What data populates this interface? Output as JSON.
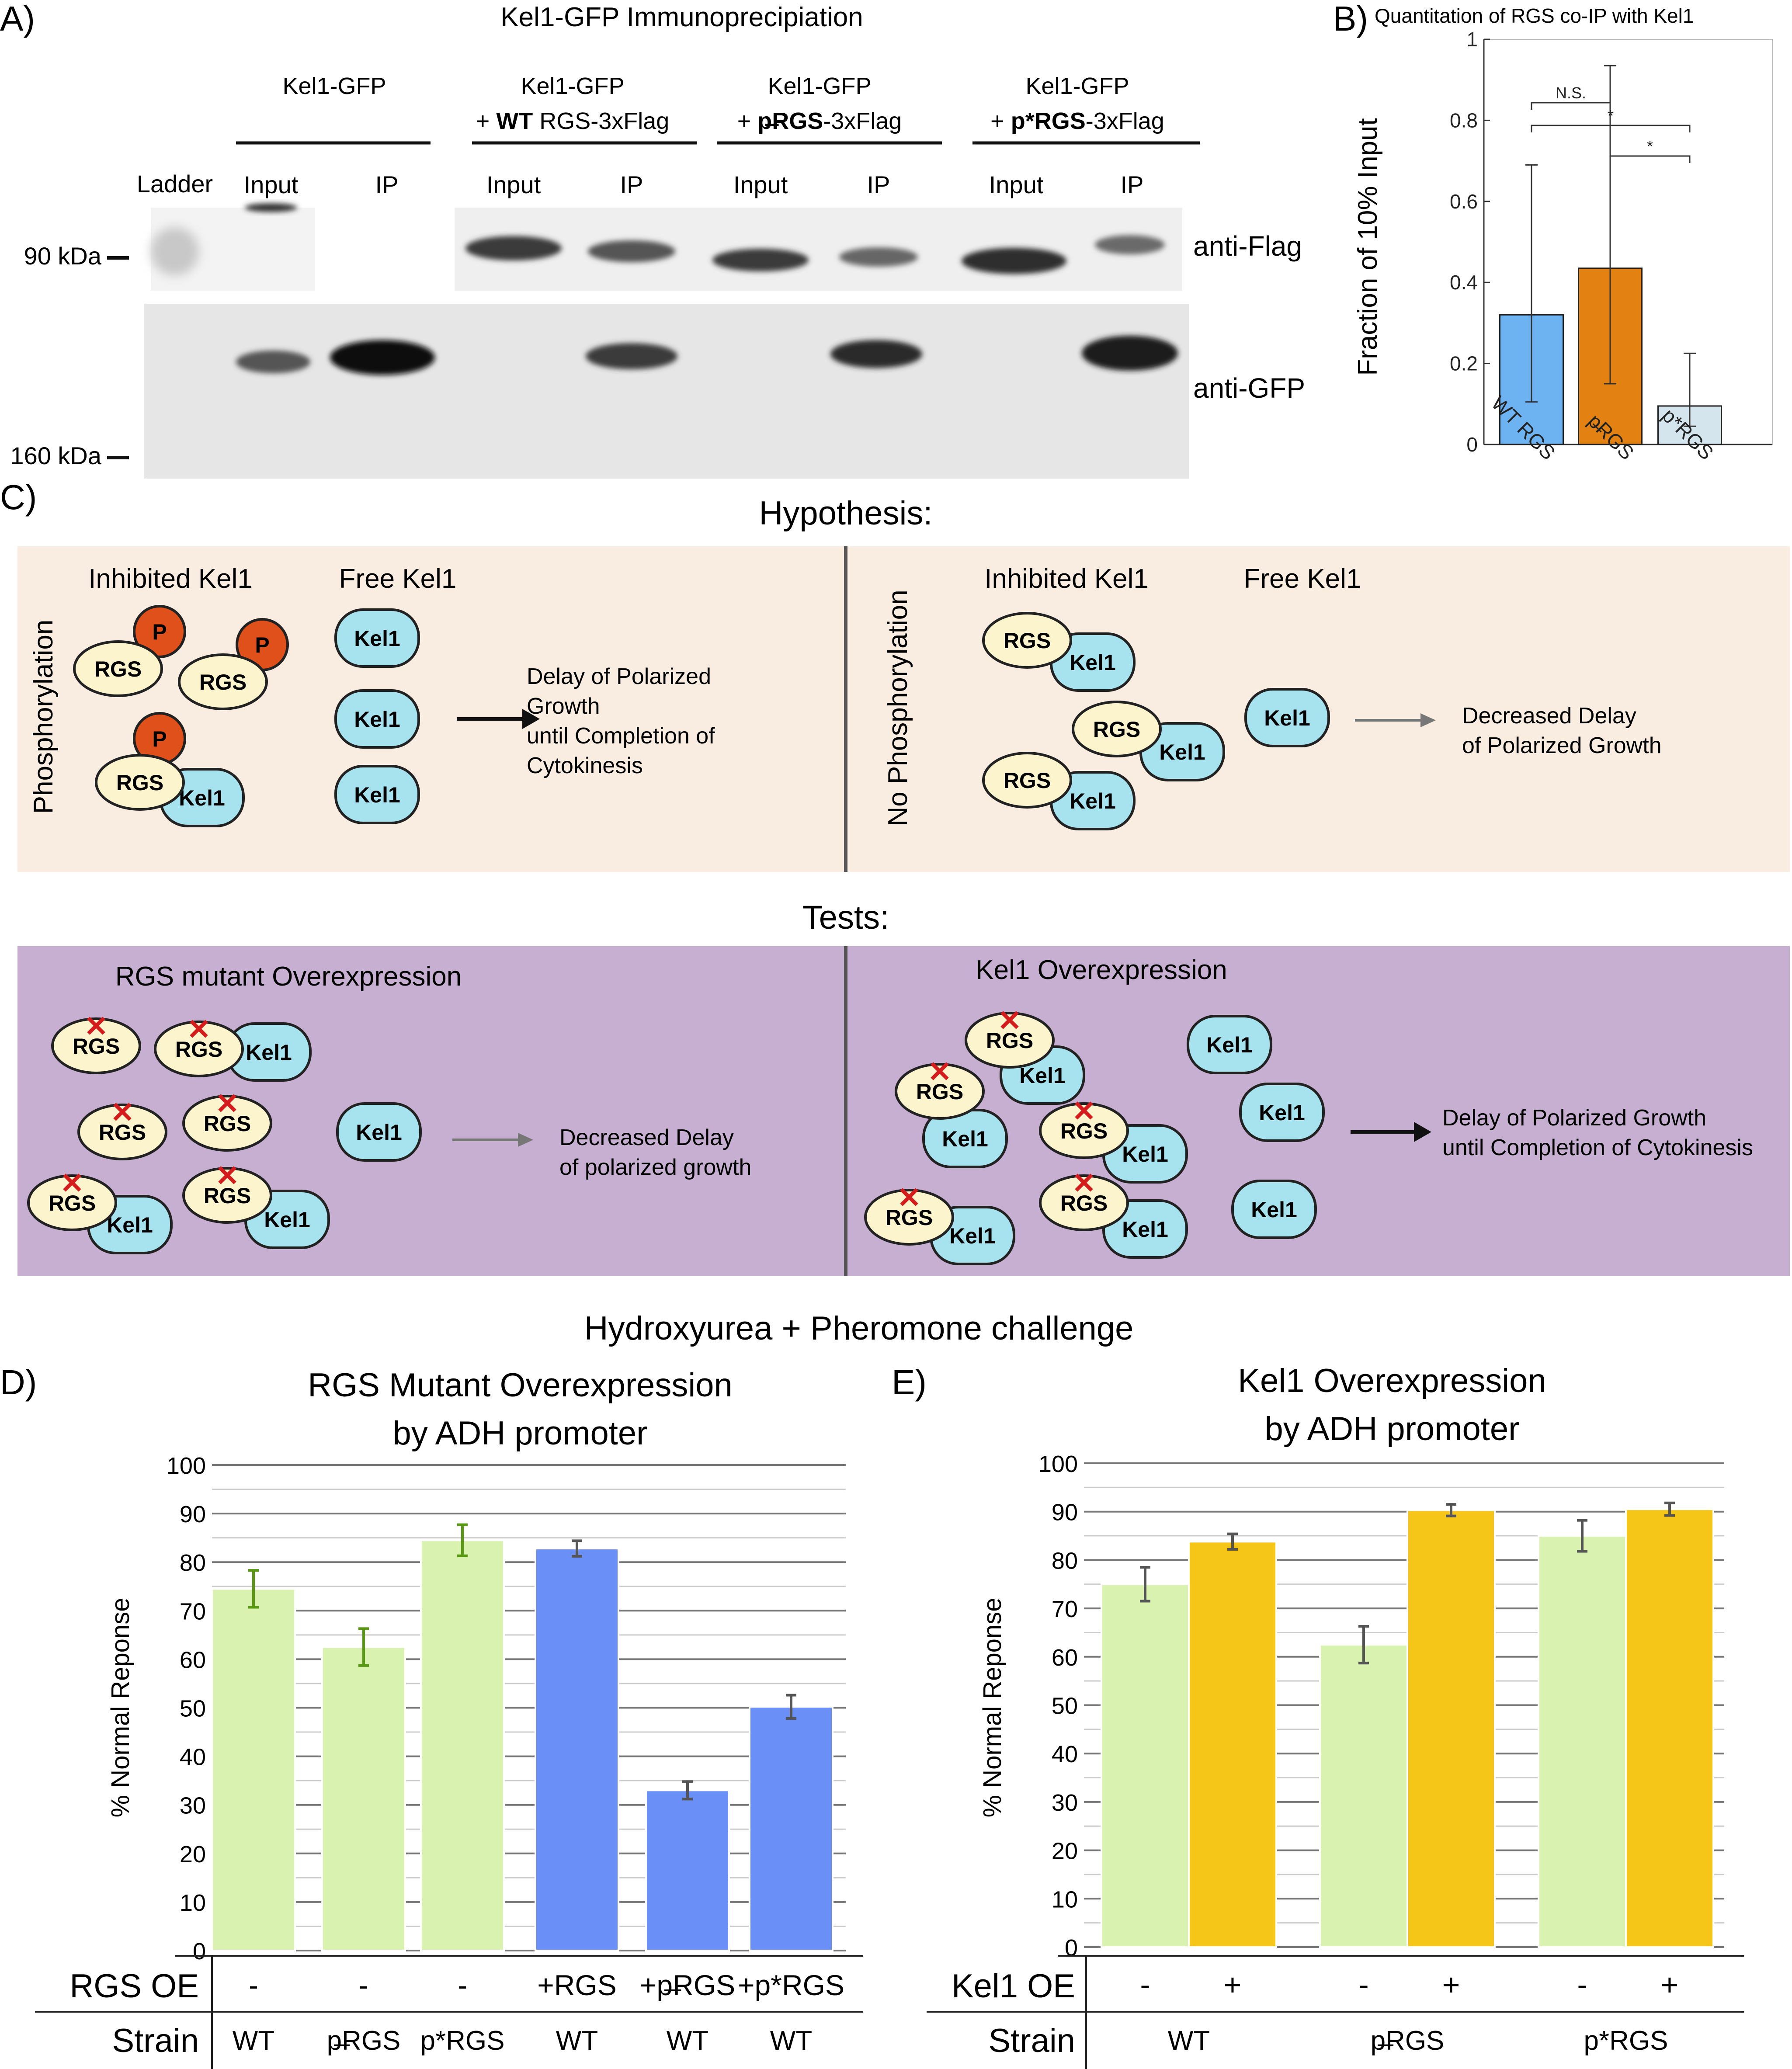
{
  "panelA": {
    "letter": "A)",
    "title": "Kel1-GFP Immunoprecipiation",
    "ladder_label": "Ladder",
    "groups": [
      {
        "line1": "Kel1-GFP",
        "pre": "",
        "bold": "",
        "post": ""
      },
      {
        "line1": "Kel1-GFP",
        "pre": "+ ",
        "bold": "WT",
        "post": " RGS-3xFlag"
      },
      {
        "line1": "Kel1-GFP",
        "pre": "+ ",
        "bold": "p̶RGS",
        "post": "-3xFlag"
      },
      {
        "line1": "Kel1-GFP",
        "pre": "+ ",
        "bold": "p*RGS",
        "post": "-3xFlag"
      }
    ],
    "lane_labels": [
      "Input",
      "IP",
      "Input",
      "IP",
      "Input",
      "IP",
      "Input",
      "IP"
    ],
    "marker_top": "90 kDa",
    "marker_bottom": "160 kDa",
    "blot_top_label": "anti-Flag",
    "blot_bottom_label": "anti-GFP"
  },
  "panelB": {
    "letter": "B)",
    "chart_data": {
      "type": "bar",
      "title": "Quantitation of RGS co-IP with Kel1",
      "ylabel": "Fraction of 10% Input",
      "xlabel": "",
      "ylim": [
        0,
        1
      ],
      "yticks": [
        "0",
        "0.2",
        "0.4",
        "0.6",
        "0.8",
        "1"
      ],
      "categories": [
        "WT RGS",
        "p̶RGS",
        "p*RGS"
      ],
      "values": [
        0.32,
        0.435,
        0.095
      ],
      "err_low": [
        0.105,
        0.15,
        0.045
      ],
      "err_high": [
        0.69,
        0.935,
        0.225
      ],
      "colors": [
        "#6db3f2",
        "#e38212",
        "#d4e5ee"
      ],
      "significance": [
        {
          "from": 0,
          "to": 1,
          "label": "N.S."
        },
        {
          "from": 0,
          "to": 2,
          "label": "*"
        },
        {
          "from": 1,
          "to": 2,
          "label": "*"
        }
      ]
    }
  },
  "panelC": {
    "letter": "C)",
    "hypothesis_title": "Hypothesis:",
    "tests_title": "Tests:",
    "phos": {
      "side_label": "Phosphorylation",
      "inhibited": "Inhibited Kel1",
      "free": "Free Kel1",
      "outcome": [
        "Delay of Polarized",
        "Growth",
        "until Completion of",
        "Cytokinesis"
      ]
    },
    "nophos": {
      "side_label": "No Phosphorylation",
      "inhibited": "Inhibited Kel1",
      "free": "Free Kel1",
      "outcome": [
        "Decreased Delay",
        "of Polarized Growth"
      ]
    },
    "rgs_oe": {
      "title": "RGS mutant Overexpression",
      "outcome": [
        "Decreased Delay",
        "of polarized growth"
      ]
    },
    "kel1_oe": {
      "title": "Kel1 Overexpression",
      "outcome": [
        "Delay of Polarized Growth",
        "until Completion of Cytokinesis"
      ]
    },
    "labels": {
      "rgs": "RGS",
      "kel1": "Kel1",
      "p": "P"
    },
    "colors": {
      "hyp_bg": "#f9ece0",
      "test_bg": "#c6afd1",
      "rgs_fill": "#fcf4cd",
      "kel1_fill": "#a7e3ef",
      "p_fill": "#e0501b",
      "mutation_x": "#d41c1c"
    }
  },
  "section_title": "Hydroxyurea + Pheromone challenge",
  "panelD": {
    "letter": "D)",
    "chart_data": {
      "type": "bar",
      "title": "RGS Mutant Overexpression\nby ADH promoter",
      "title_lines": [
        "RGS Mutant Overexpression",
        "by ADH promoter"
      ],
      "ylabel": "% Normal Reponse",
      "ylim": [
        0,
        100
      ],
      "yticks": [
        "0",
        "10",
        "20",
        "30",
        "40",
        "50",
        "60",
        "70",
        "80",
        "90",
        "100"
      ],
      "categories": [
        "WT",
        "p̶RGS",
        "p*RGS",
        "WT",
        "WT",
        "WT"
      ],
      "row_labels": {
        "oe": "RGS OE",
        "strain": "Strain"
      },
      "oe_labels": [
        "-",
        "-",
        "-",
        "+RGS",
        "+p̶RGS",
        "+p*RGS"
      ],
      "strain_labels": [
        "WT",
        "p̶RGS",
        "p*RGS",
        "WT",
        "WT",
        "WT"
      ],
      "values": [
        74.5,
        62.5,
        84.5,
        82.8,
        33.0,
        50.2
      ],
      "errors": [
        3.8,
        3.8,
        3.2,
        1.6,
        1.8,
        2.4
      ],
      "colors": [
        "#d9f2b0",
        "#d9f2b0",
        "#d9f2b0",
        "#6a8ff7",
        "#6a8ff7",
        "#6a8ff7"
      ],
      "error_colors": [
        "#5a9a12",
        "#5a9a12",
        "#5a9a12",
        "#555555",
        "#555555",
        "#555555"
      ]
    }
  },
  "panelE": {
    "letter": "E)",
    "chart_data": {
      "type": "bar",
      "title": "Kel1 Overexpression\nby ADH promoter",
      "title_lines": [
        "Kel1 Overexpression",
        "by ADH promoter"
      ],
      "ylabel": "% Normal Reponse",
      "ylim": [
        0,
        100
      ],
      "yticks": [
        "0",
        "10",
        "20",
        "30",
        "40",
        "50",
        "60",
        "70",
        "80",
        "90",
        "100"
      ],
      "categories": [
        "WT",
        "p̶RGS",
        "p*RGS"
      ],
      "row_labels": {
        "oe": "Kel1 OE",
        "strain": "Strain"
      },
      "oe_labels": [
        "-",
        "+",
        "-",
        "+",
        "-",
        "+"
      ],
      "series": [
        {
          "name": "-",
          "values": [
            75.0,
            62.5,
            85.0
          ],
          "errors": [
            3.5,
            3.8,
            3.2
          ],
          "color": "#d9f2b0"
        },
        {
          "name": "+",
          "values": [
            83.8,
            90.3,
            90.5
          ],
          "errors": [
            1.6,
            1.2,
            1.3
          ],
          "color": "#f5c518"
        }
      ]
    }
  }
}
